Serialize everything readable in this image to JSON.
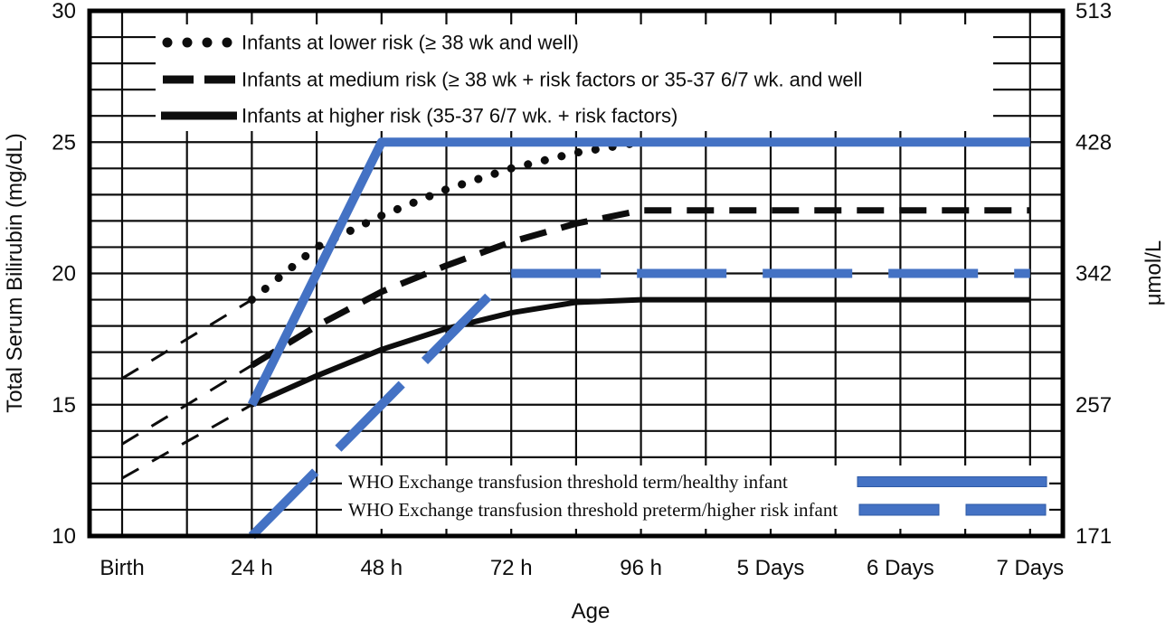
{
  "figure": {
    "background": "#ffffff",
    "accent_blue": "#4472c4",
    "accent_blue_dark": "#2e5aa5",
    "line_black": "#0d0d0d"
  },
  "axes": {
    "y_left": {
      "title": "Total Serum Bilirubin (mg/dL)",
      "tick_labels": [
        "30",
        "25",
        "20",
        "15",
        "10"
      ],
      "tick_values": [
        30,
        25,
        20,
        15,
        10
      ],
      "range": [
        10,
        30
      ],
      "minor_step": 1
    },
    "y_right": {
      "title": "μmol/L",
      "tick_labels": [
        "513",
        "428",
        "342",
        "257",
        "171"
      ],
      "at_values": [
        30,
        25,
        20,
        15,
        10
      ]
    },
    "x": {
      "title": "Age",
      "tick_labels": [
        "Birth",
        "24 h",
        "48 h",
        "72 h",
        "96 h",
        "5 Days",
        "6 Days",
        "7 Days"
      ],
      "tick_hours": [
        0,
        24,
        48,
        72,
        96,
        120,
        144,
        168
      ],
      "minor_step_hours": 12
    }
  },
  "legend": {
    "items": [
      {
        "style": "dotted",
        "label": "Infants at lower risk (≥ 38 wk and well)"
      },
      {
        "style": "dashed",
        "label": "Infants at medium risk (≥ 38 wk + risk factors or 35-37 6/7 wk. and well"
      },
      {
        "style": "solid",
        "label": "Infants at higher risk (35-37 6/7 wk. + risk factors)"
      }
    ]
  },
  "who_legend": {
    "items": [
      {
        "style": "blue-solid",
        "label": "WHO Exchange transfusion threshold term/healthy infant"
      },
      {
        "style": "blue-dashed",
        "label": "WHO Exchange transfusion threshold preterm/higher risk infant"
      }
    ]
  },
  "chart_data": {
    "type": "line",
    "x_unit": "hours",
    "xlabel": "Age",
    "ylabel_left": "Total Serum Bilirubin (mg/dL)",
    "ylabel_right": "μmol/L",
    "ylim": [
      10,
      30
    ],
    "xlim_hours": [
      -6,
      174
    ],
    "grid": "on",
    "series": [
      {
        "name": "lower-risk-extrapolation",
        "style": "thin-dashed",
        "color": "#0d0d0d",
        "width": 3,
        "points": [
          [
            0,
            16
          ],
          [
            24,
            19
          ]
        ]
      },
      {
        "name": "medium-risk-extrapolation",
        "style": "thin-dashed",
        "color": "#0d0d0d",
        "width": 3,
        "points": [
          [
            0,
            13.5
          ],
          [
            24,
            16.5
          ]
        ]
      },
      {
        "name": "higher-risk-extrapolation",
        "style": "thin-dashed",
        "color": "#0d0d0d",
        "width": 3,
        "points": [
          [
            0,
            12.2
          ],
          [
            24,
            15
          ]
        ]
      },
      {
        "name": "infants-lower-risk",
        "style": "dotted",
        "color": "#0d0d0d",
        "width": 9,
        "points": [
          [
            24,
            19
          ],
          [
            36,
            21
          ],
          [
            48,
            22.2
          ],
          [
            60,
            23.2
          ],
          [
            72,
            24
          ],
          [
            84,
            24.6
          ],
          [
            96,
            25
          ]
        ]
      },
      {
        "name": "infants-medium-risk",
        "style": "dashed",
        "color": "#0d0d0d",
        "width": 7,
        "points": [
          [
            24,
            16.5
          ],
          [
            36,
            18
          ],
          [
            48,
            19.3
          ],
          [
            60,
            20.3
          ],
          [
            72,
            21.2
          ],
          [
            84,
            21.9
          ],
          [
            96,
            22.4
          ],
          [
            168,
            22.4
          ]
        ]
      },
      {
        "name": "infants-higher-risk",
        "style": "solid",
        "color": "#0d0d0d",
        "width": 6,
        "points": [
          [
            24,
            15
          ],
          [
            36,
            16.1
          ],
          [
            48,
            17.1
          ],
          [
            60,
            17.9
          ],
          [
            72,
            18.5
          ],
          [
            84,
            18.9
          ],
          [
            96,
            19
          ],
          [
            168,
            19
          ]
        ]
      },
      {
        "name": "who-term-threshold",
        "style": "solid",
        "color": "#4472c4",
        "width": 10,
        "points": [
          [
            24,
            15
          ],
          [
            48,
            25
          ],
          [
            168,
            25
          ]
        ]
      },
      {
        "name": "who-preterm-threshold-rising",
        "style": "blue-dashed",
        "color": "#4472c4",
        "width": 10,
        "points": [
          [
            24,
            10
          ],
          [
            72,
            20
          ]
        ]
      },
      {
        "name": "who-preterm-threshold-flat",
        "style": "blue-long-dash",
        "color": "#4472c4",
        "width": 10,
        "points": [
          [
            72,
            20
          ],
          [
            168,
            20
          ]
        ]
      }
    ]
  }
}
